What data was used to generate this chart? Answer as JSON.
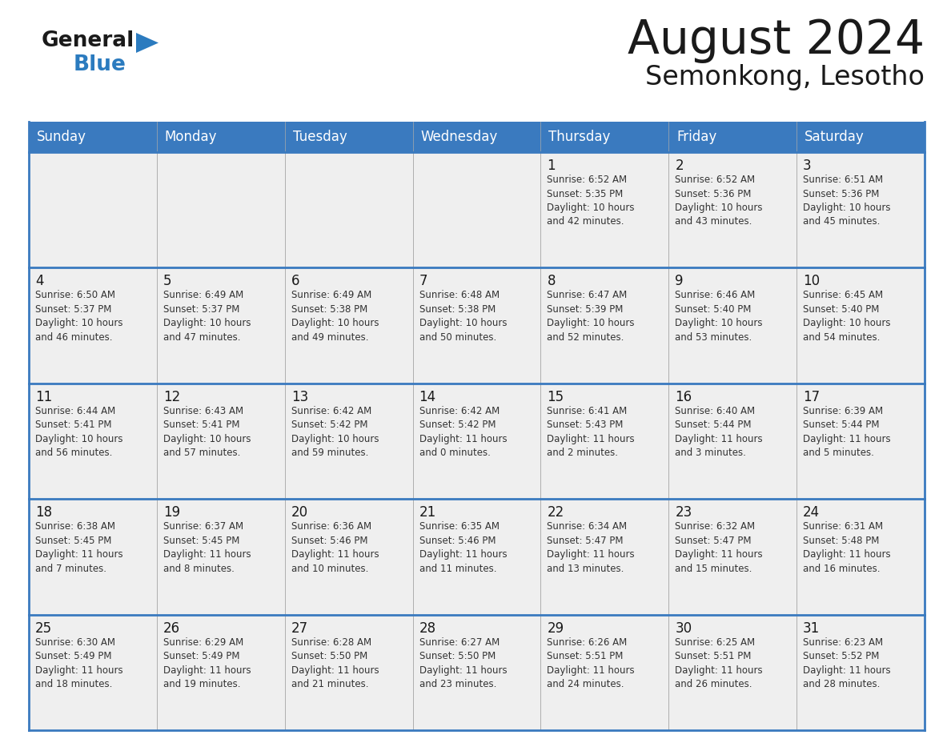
{
  "title": "August 2024",
  "subtitle": "Semonkong, Lesotho",
  "days_of_week": [
    "Sunday",
    "Monday",
    "Tuesday",
    "Wednesday",
    "Thursday",
    "Friday",
    "Saturday"
  ],
  "header_bg": "#3a7abf",
  "header_text": "#ffffff",
  "cell_bg": "#efefef",
  "border_color": "#3a7abf",
  "separator_color": "#3a7abf",
  "text_color": "#333333",
  "day_num_color": "#1a1a1a",
  "title_color": "#1a1a1a",
  "logo_black": "#1a1a1a",
  "logo_blue": "#2b7bbf",
  "calendar_data": [
    [
      "",
      "",
      "",
      "",
      "1\nSunrise: 6:52 AM\nSunset: 5:35 PM\nDaylight: 10 hours\nand 42 minutes.",
      "2\nSunrise: 6:52 AM\nSunset: 5:36 PM\nDaylight: 10 hours\nand 43 minutes.",
      "3\nSunrise: 6:51 AM\nSunset: 5:36 PM\nDaylight: 10 hours\nand 45 minutes."
    ],
    [
      "4\nSunrise: 6:50 AM\nSunset: 5:37 PM\nDaylight: 10 hours\nand 46 minutes.",
      "5\nSunrise: 6:49 AM\nSunset: 5:37 PM\nDaylight: 10 hours\nand 47 minutes.",
      "6\nSunrise: 6:49 AM\nSunset: 5:38 PM\nDaylight: 10 hours\nand 49 minutes.",
      "7\nSunrise: 6:48 AM\nSunset: 5:38 PM\nDaylight: 10 hours\nand 50 minutes.",
      "8\nSunrise: 6:47 AM\nSunset: 5:39 PM\nDaylight: 10 hours\nand 52 minutes.",
      "9\nSunrise: 6:46 AM\nSunset: 5:40 PM\nDaylight: 10 hours\nand 53 minutes.",
      "10\nSunrise: 6:45 AM\nSunset: 5:40 PM\nDaylight: 10 hours\nand 54 minutes."
    ],
    [
      "11\nSunrise: 6:44 AM\nSunset: 5:41 PM\nDaylight: 10 hours\nand 56 minutes.",
      "12\nSunrise: 6:43 AM\nSunset: 5:41 PM\nDaylight: 10 hours\nand 57 minutes.",
      "13\nSunrise: 6:42 AM\nSunset: 5:42 PM\nDaylight: 10 hours\nand 59 minutes.",
      "14\nSunrise: 6:42 AM\nSunset: 5:42 PM\nDaylight: 11 hours\nand 0 minutes.",
      "15\nSunrise: 6:41 AM\nSunset: 5:43 PM\nDaylight: 11 hours\nand 2 minutes.",
      "16\nSunrise: 6:40 AM\nSunset: 5:44 PM\nDaylight: 11 hours\nand 3 minutes.",
      "17\nSunrise: 6:39 AM\nSunset: 5:44 PM\nDaylight: 11 hours\nand 5 minutes."
    ],
    [
      "18\nSunrise: 6:38 AM\nSunset: 5:45 PM\nDaylight: 11 hours\nand 7 minutes.",
      "19\nSunrise: 6:37 AM\nSunset: 5:45 PM\nDaylight: 11 hours\nand 8 minutes.",
      "20\nSunrise: 6:36 AM\nSunset: 5:46 PM\nDaylight: 11 hours\nand 10 minutes.",
      "21\nSunrise: 6:35 AM\nSunset: 5:46 PM\nDaylight: 11 hours\nand 11 minutes.",
      "22\nSunrise: 6:34 AM\nSunset: 5:47 PM\nDaylight: 11 hours\nand 13 minutes.",
      "23\nSunrise: 6:32 AM\nSunset: 5:47 PM\nDaylight: 11 hours\nand 15 minutes.",
      "24\nSunrise: 6:31 AM\nSunset: 5:48 PM\nDaylight: 11 hours\nand 16 minutes."
    ],
    [
      "25\nSunrise: 6:30 AM\nSunset: 5:49 PM\nDaylight: 11 hours\nand 18 minutes.",
      "26\nSunrise: 6:29 AM\nSunset: 5:49 PM\nDaylight: 11 hours\nand 19 minutes.",
      "27\nSunrise: 6:28 AM\nSunset: 5:50 PM\nDaylight: 11 hours\nand 21 minutes.",
      "28\nSunrise: 6:27 AM\nSunset: 5:50 PM\nDaylight: 11 hours\nand 23 minutes.",
      "29\nSunrise: 6:26 AM\nSunset: 5:51 PM\nDaylight: 11 hours\nand 24 minutes.",
      "30\nSunrise: 6:25 AM\nSunset: 5:51 PM\nDaylight: 11 hours\nand 26 minutes.",
      "31\nSunrise: 6:23 AM\nSunset: 5:52 PM\nDaylight: 11 hours\nand 28 minutes."
    ]
  ]
}
